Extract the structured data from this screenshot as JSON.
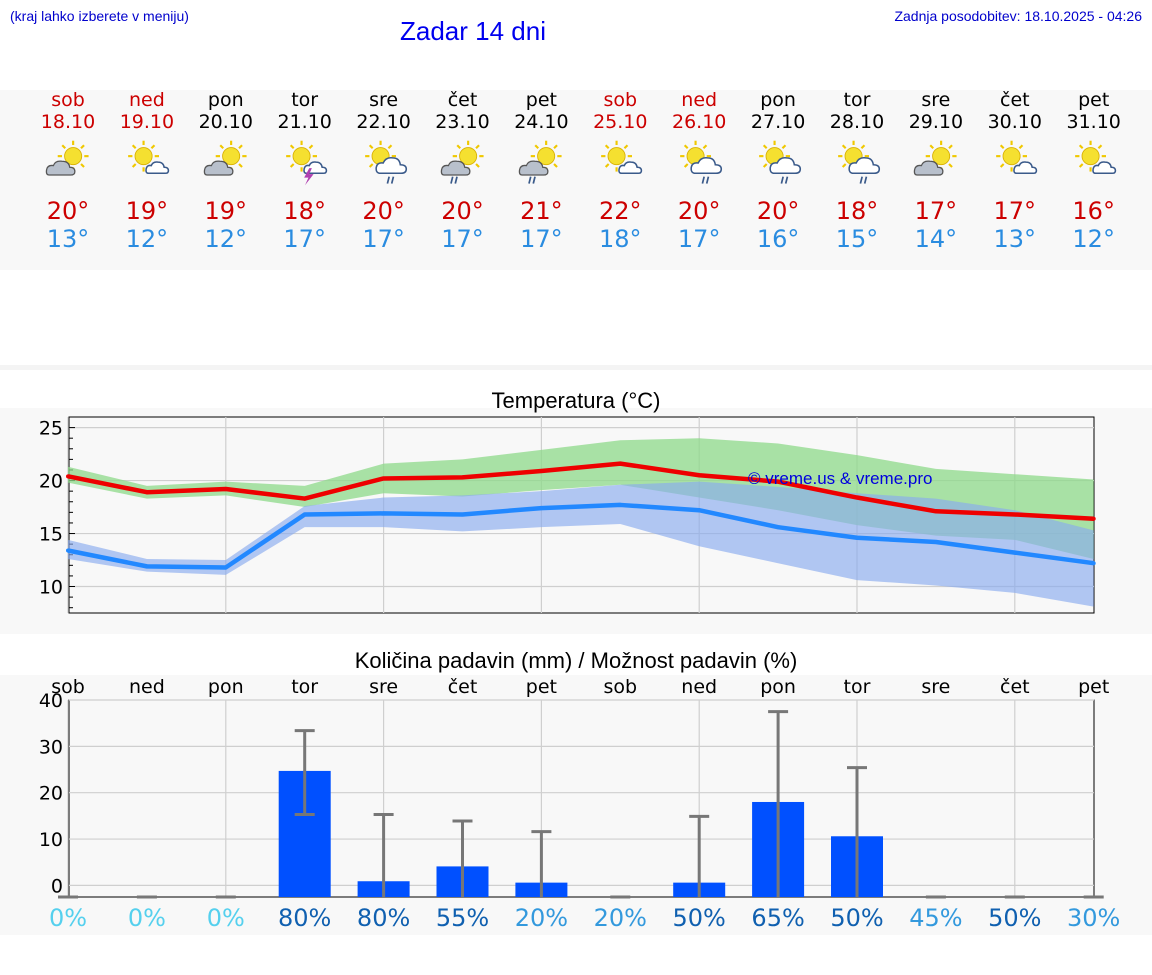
{
  "header": {
    "menu_hint": "(kraj lahko izberete v meniju)",
    "title": "Zadar 14 dni",
    "updated": "Zadnja posodobitev: 18.10.2025 - 04:26"
  },
  "days": [
    {
      "name": "sob",
      "date": "18.10",
      "weekend": true,
      "icon": "partly-cloudy-icon",
      "max": "20°",
      "min": "13°"
    },
    {
      "name": "ned",
      "date": "19.10",
      "weekend": true,
      "icon": "sun-cloud-icon",
      "max": "19°",
      "min": "12°"
    },
    {
      "name": "pon",
      "date": "20.10",
      "weekend": false,
      "icon": "partly-cloudy-icon",
      "max": "19°",
      "min": "12°"
    },
    {
      "name": "tor",
      "date": "21.10",
      "weekend": false,
      "icon": "sun-thunder-icon",
      "max": "18°",
      "min": "17°"
    },
    {
      "name": "sre",
      "date": "22.10",
      "weekend": false,
      "icon": "sun-rain-icon",
      "max": "20°",
      "min": "17°"
    },
    {
      "name": "čet",
      "date": "23.10",
      "weekend": false,
      "icon": "cloud-rain-icon",
      "max": "20°",
      "min": "17°"
    },
    {
      "name": "pet",
      "date": "24.10",
      "weekend": false,
      "icon": "cloud-rain-icon",
      "max": "21°",
      "min": "17°"
    },
    {
      "name": "sob",
      "date": "25.10",
      "weekend": true,
      "icon": "sun-cloud-icon",
      "max": "22°",
      "min": "18°"
    },
    {
      "name": "ned",
      "date": "26.10",
      "weekend": true,
      "icon": "sun-rain-icon",
      "max": "20°",
      "min": "17°"
    },
    {
      "name": "pon",
      "date": "27.10",
      "weekend": false,
      "icon": "sun-rain-icon",
      "max": "20°",
      "min": "16°"
    },
    {
      "name": "tor",
      "date": "28.10",
      "weekend": false,
      "icon": "sun-rain-icon",
      "max": "18°",
      "min": "15°"
    },
    {
      "name": "sre",
      "date": "29.10",
      "weekend": false,
      "icon": "partly-cloudy-icon",
      "max": "17°",
      "min": "14°"
    },
    {
      "name": "čet",
      "date": "30.10",
      "weekend": false,
      "icon": "sun-cloud-icon",
      "max": "17°",
      "min": "13°"
    },
    {
      "name": "pet",
      "date": "31.10",
      "weekend": false,
      "icon": "sun-cloud-icon",
      "max": "16°",
      "min": "12°"
    }
  ],
  "colors": {
    "max_line": "#ee0000",
    "min_line": "#2288ff",
    "max_band": "#8ed98a",
    "min_band": "#88aaee",
    "bar": "#0050ff",
    "whisker": "#777777",
    "weekend": "#cc0000"
  },
  "chart_data": [
    {
      "type": "line",
      "title": "Temperatura (°C)",
      "watermark": "© vreme.us & vreme.pro",
      "ylim": [
        7.5,
        26
      ],
      "yticks": [
        10,
        15,
        20,
        25
      ],
      "x": [
        0,
        1,
        2,
        3,
        4,
        5,
        6,
        7,
        8,
        9,
        10,
        11,
        12,
        13
      ],
      "series": [
        {
          "name": "max",
          "values": [
            20.4,
            18.9,
            19.2,
            18.3,
            20.2,
            20.3,
            20.9,
            21.6,
            20.5,
            19.9,
            18.4,
            17.1,
            16.8,
            16.4
          ],
          "band_low": [
            19.8,
            18.3,
            18.6,
            17.5,
            18.8,
            18.5,
            19.1,
            19.6,
            18.4,
            17.2,
            15.8,
            14.8,
            14.4,
            12.6
          ],
          "band_high": [
            21.3,
            19.5,
            19.9,
            19.5,
            21.6,
            22.0,
            22.9,
            23.8,
            24.0,
            23.5,
            22.4,
            21.1,
            20.6,
            20.1
          ]
        },
        {
          "name": "min",
          "values": [
            13.4,
            11.9,
            11.8,
            16.8,
            16.9,
            16.8,
            17.4,
            17.7,
            17.2,
            15.6,
            14.6,
            14.2,
            13.2,
            12.2
          ],
          "band_low": [
            12.6,
            11.4,
            11.1,
            15.6,
            15.6,
            15.2,
            15.6,
            15.9,
            13.8,
            12.2,
            10.6,
            10.1,
            9.4,
            8.1
          ],
          "band_high": [
            14.4,
            12.6,
            12.5,
            17.6,
            18.4,
            18.6,
            19.0,
            19.6,
            19.9,
            19.4,
            18.8,
            18.3,
            17.2,
            15.3
          ]
        }
      ]
    },
    {
      "type": "bar",
      "title": "Količina padavin (mm) / Možnost padavin (%)",
      "ylim": [
        -2.5,
        40
      ],
      "yticks": [
        0,
        10,
        20,
        30,
        40
      ],
      "categories": [
        "sob",
        "ned",
        "pon",
        "tor",
        "sre",
        "čet",
        "pet",
        "sob",
        "ned",
        "pon",
        "tor",
        "sre",
        "čet",
        "pet"
      ],
      "values": [
        0,
        0,
        0,
        24.7,
        0.9,
        4.1,
        0.6,
        0,
        0.6,
        18,
        10.6,
        0,
        0,
        0
      ],
      "err_high": [
        0,
        0,
        0,
        33.4,
        15.3,
        13.9,
        11.6,
        0,
        14.9,
        37.5,
        25.4,
        0,
        0,
        0
      ],
      "err_low": [
        0,
        0,
        0,
        15.3,
        0,
        0,
        0,
        0,
        0,
        0,
        0,
        0,
        0,
        0
      ],
      "probability": [
        "0%",
        "0%",
        "0%",
        "80%",
        "80%",
        "55%",
        "20%",
        "20%",
        "50%",
        "65%",
        "50%",
        "45%",
        "50%",
        "30%"
      ],
      "probability_values": [
        0,
        0,
        0,
        80,
        80,
        55,
        20,
        20,
        50,
        65,
        50,
        45,
        50,
        30
      ]
    }
  ]
}
